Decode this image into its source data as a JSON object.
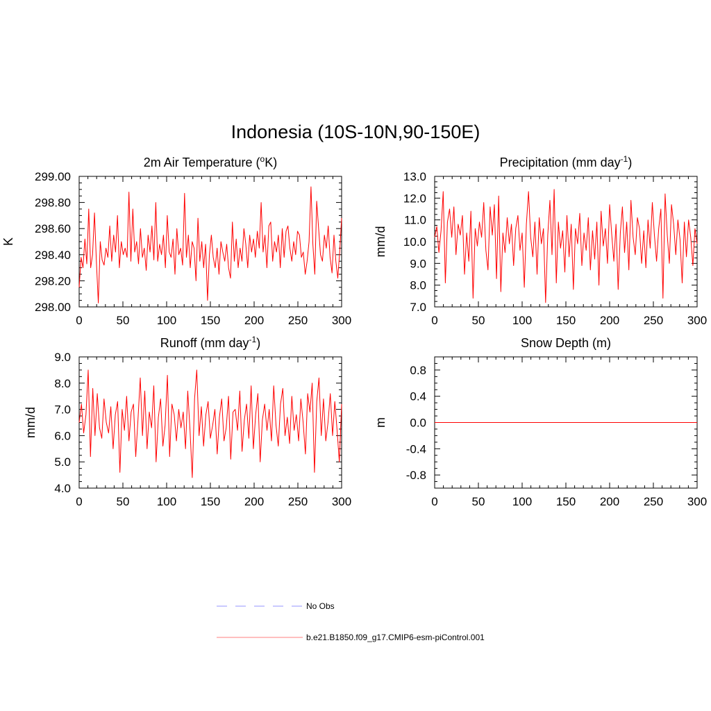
{
  "title": "Indonesia (10S-10N,90-150E)",
  "line_color": "#ff0000",
  "obs_color": "#aaaaff",
  "legend": {
    "items": [
      {
        "label": "No Obs",
        "style": "dashed",
        "color": "#aaaaff"
      },
      {
        "label": "b.e21.B1850.f09_g17.CMIP6-esm-piControl.001",
        "style": "solid",
        "color": "#ff9999"
      }
    ]
  },
  "panels": [
    {
      "title_main": "2m Air Temperature (",
      "title_sup": "o",
      "title_end": "K)",
      "ylabel": "K",
      "yticks": [
        "299.00",
        "298.80",
        "298.60",
        "298.40",
        "298.20",
        "298.00"
      ],
      "xticks": [
        "0",
        "50",
        "100",
        "150",
        "200",
        "250",
        "300"
      ]
    },
    {
      "title_main": "Precipitation (mm day",
      "title_sup": "-1",
      "title_end": ")",
      "ylabel": "mm/d",
      "yticks": [
        "13.0",
        "12.0",
        "11.0",
        "10.0",
        "9.0",
        "8.0",
        "7.0"
      ],
      "xticks": [
        "0",
        "50",
        "100",
        "150",
        "200",
        "250",
        "300"
      ]
    },
    {
      "title_main": "Runoff (mm day",
      "title_sup": "-1",
      "title_end": ")",
      "ylabel": "mm/d",
      "yticks": [
        "9.0",
        "8.0",
        "7.0",
        "6.0",
        "5.0",
        "4.0"
      ],
      "xticks": [
        "0",
        "50",
        "100",
        "150",
        "200",
        "250",
        "300"
      ]
    },
    {
      "title_main": "Snow Depth (m)",
      "title_sup": "",
      "title_end": "",
      "ylabel": "m",
      "yticks": [
        "0.8",
        "0.4",
        "0.0",
        "-0.4",
        "-0.8"
      ],
      "xticks": [
        "0",
        "50",
        "100",
        "150",
        "200",
        "250",
        "300"
      ]
    }
  ],
  "chart_data": [
    {
      "type": "line",
      "title": "2m Air Temperature (oK)",
      "xlabel": "",
      "ylabel": "K",
      "xlim": [
        0,
        300
      ],
      "ylim": [
        298.0,
        299.0
      ],
      "ytick_values": [
        299.0,
        298.8,
        298.6,
        298.4,
        298.2,
        298.0
      ],
      "xtick_values": [
        0,
        50,
        100,
        150,
        200,
        250,
        300
      ],
      "series": [
        {
          "name": "b.e21.B1850.f09_g17.CMIP6-esm-piControl.001",
          "values": [
            298.15,
            298.38,
            298.3,
            298.52,
            298.33,
            298.75,
            298.3,
            298.4,
            298.72,
            298.35,
            298.03,
            298.5,
            298.36,
            298.32,
            298.45,
            298.38,
            298.62,
            298.35,
            298.55,
            298.42,
            298.7,
            298.3,
            298.5,
            298.4,
            298.45,
            298.38,
            298.88,
            298.35,
            298.75,
            298.42,
            298.5,
            298.33,
            298.6,
            298.38,
            298.45,
            298.28,
            298.55,
            298.42,
            298.62,
            298.36,
            298.8,
            298.35,
            298.48,
            298.4,
            298.55,
            298.3,
            298.7,
            298.42,
            298.38,
            298.52,
            298.25,
            298.6,
            298.4,
            298.45,
            298.32,
            298.87,
            298.38,
            298.55,
            298.3,
            298.5,
            298.45,
            298.2,
            298.68,
            298.35,
            298.5,
            298.3,
            298.48,
            298.05,
            298.4,
            298.55,
            298.38,
            298.3,
            298.45,
            298.25,
            298.5,
            298.42,
            298.35,
            298.48,
            298.3,
            298.22,
            298.65,
            298.35,
            298.52,
            298.3,
            298.45,
            298.35,
            298.6,
            298.48,
            298.3,
            298.55,
            298.42,
            298.52,
            298.38,
            298.58,
            298.45,
            298.8,
            298.42,
            298.55,
            298.3,
            298.62,
            298.65,
            298.35,
            298.5,
            298.42,
            298.55,
            298.3,
            298.6,
            298.38,
            298.58,
            298.62,
            298.45,
            298.35,
            298.5,
            298.4,
            298.58,
            298.55,
            298.38,
            298.42,
            298.25,
            298.35,
            298.5,
            298.92,
            298.48,
            298.25,
            298.81,
            298.6,
            298.4,
            298.35,
            298.55,
            298.45,
            298.62,
            298.38,
            298.26,
            298.55,
            298.35,
            298.22,
            298.42,
            298.68
          ]
        }
      ]
    },
    {
      "type": "line",
      "title": "Precipitation (mm day-1)",
      "xlabel": "",
      "ylabel": "mm/d",
      "xlim": [
        0,
        300
      ],
      "ylim": [
        7.0,
        13.0
      ],
      "ytick_values": [
        13.0,
        12.0,
        11.0,
        10.0,
        9.0,
        8.0,
        7.0
      ],
      "xtick_values": [
        0,
        50,
        100,
        150,
        200,
        250,
        300
      ],
      "series": [
        {
          "name": "b.e21.B1850.f09_g17.CMIP6-esm-piControl.001",
          "values": [
            10.2,
            10.7,
            9.5,
            10.5,
            12.3,
            8.1,
            10.9,
            11.5,
            10.2,
            11.6,
            9.4,
            10.8,
            10.3,
            11.2,
            8.5,
            10.4,
            9.1,
            11.4,
            7.4,
            10.6,
            9.8,
            10.9,
            10.2,
            11.8,
            9.6,
            8.7,
            11.6,
            10.3,
            11.7,
            8.3,
            12.1,
            7.7,
            10.4,
            9.5,
            11.1,
            9.9,
            10.8,
            8.9,
            10.6,
            11.2,
            9.6,
            10.4,
            7.9,
            10.8,
            12.3,
            10.2,
            9.3,
            10.9,
            8.5,
            11.1,
            9.9,
            10.6,
            7.2,
            10.3,
            11.9,
            9.4,
            12.4,
            8.1,
            10.9,
            9.7,
            10.5,
            8.6,
            11.2,
            9.3,
            10.8,
            7.8,
            10.6,
            9.9,
            11.3,
            8.9,
            10.4,
            9.6,
            11.1,
            8.7,
            10.5,
            9.2,
            10.9,
            8.0,
            11.4,
            9.8,
            10.6,
            9.0,
            11.7,
            10.3,
            9.1,
            10.8,
            7.8,
            10.4,
            11.6,
            9.5,
            10.9,
            8.7,
            11.9,
            10.2,
            9.4,
            11.1,
            10.6,
            9.0,
            10.5,
            8.8,
            11.0,
            9.7,
            11.8,
            10.3,
            9.1,
            10.6,
            11.5,
            7.4,
            12.2,
            10.3,
            9.0,
            11.7,
            10.8,
            9.4,
            11.0,
            10.1,
            8.1,
            10.9,
            9.3,
            11.0,
            10.2,
            8.9,
            10.6,
            9.9
          ]
        }
      ]
    },
    {
      "type": "line",
      "title": "Runoff (mm day-1)",
      "xlabel": "",
      "ylabel": "mm/d",
      "xlim": [
        0,
        300
      ],
      "ylim": [
        4.0,
        9.0
      ],
      "ytick_values": [
        9.0,
        8.0,
        7.0,
        6.0,
        5.0,
        4.0
      ],
      "xtick_values": [
        0,
        50,
        100,
        150,
        200,
        250,
        300
      ],
      "series": [
        {
          "name": "b.e21.B1850.f09_g17.CMIP6-esm-piControl.001",
          "values": [
            6.5,
            7.2,
            6.1,
            6.8,
            8.5,
            5.2,
            7.8,
            6.0,
            7.6,
            6.3,
            5.9,
            7.4,
            6.5,
            6.1,
            7.1,
            5.5,
            6.8,
            7.3,
            4.6,
            7.0,
            6.2,
            7.5,
            5.8,
            6.9,
            7.2,
            5.2,
            6.6,
            8.2,
            6.0,
            7.7,
            5.5,
            6.9,
            6.3,
            7.9,
            5.0,
            6.7,
            7.4,
            5.6,
            6.4,
            8.3,
            5.2,
            7.2,
            6.8,
            5.8,
            7.0,
            6.3,
            6.9,
            5.5,
            7.7,
            6.2,
            4.4,
            7.4,
            8.5,
            6.0,
            7.1,
            5.6,
            6.8,
            7.3,
            5.9,
            6.4,
            7.0,
            5.3,
            6.7,
            7.4,
            5.8,
            6.3,
            7.5,
            5.1,
            6.9,
            7.0,
            6.2,
            7.7,
            5.4,
            6.6,
            7.2,
            5.9,
            7.9,
            5.5,
            6.8,
            7.6,
            5.0,
            6.6,
            7.2,
            6.2,
            7.0,
            5.8,
            7.9,
            6.4,
            5.6,
            7.2,
            7.8,
            6.0,
            6.7,
            5.7,
            7.5,
            6.2,
            6.8,
            5.8,
            7.4,
            6.5,
            5.3,
            7.6,
            6.9,
            8.0,
            4.6,
            7.3,
            8.2,
            6.0,
            7.4,
            5.8,
            6.5,
            7.6,
            6.0,
            7.3,
            6.2,
            5.0,
            7.2
          ]
        }
      ]
    },
    {
      "type": "line",
      "title": "Snow Depth (m)",
      "xlabel": "",
      "ylabel": "m",
      "xlim": [
        0,
        300
      ],
      "ylim": [
        -1.0,
        1.0
      ],
      "ytick_values": [
        0.8,
        0.4,
        0.0,
        -0.4,
        -0.8
      ],
      "xtick_values": [
        0,
        50,
        100,
        150,
        200,
        250,
        300
      ],
      "series": [
        {
          "name": "b.e21.B1850.f09_g17.CMIP6-esm-piControl.001",
          "values": [
            0.0,
            0.0
          ]
        }
      ]
    }
  ]
}
